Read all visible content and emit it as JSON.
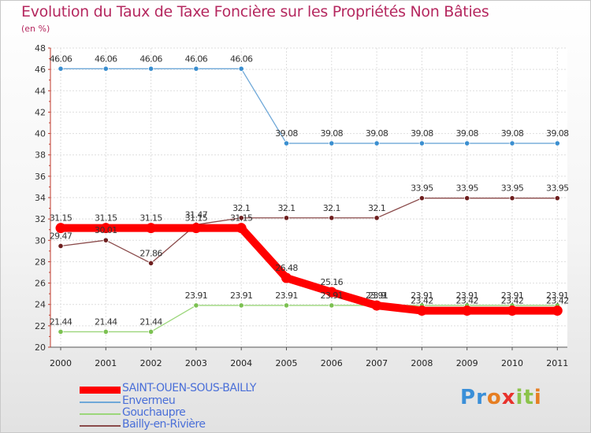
{
  "title": "Evolution du Taux de Taxe Foncière sur les Propriétés Non Bâties",
  "y_unit": "(en %)",
  "logo": {
    "text": "Proxiti",
    "letters": [
      "P",
      "r",
      "o",
      "x",
      "i",
      "t",
      "i"
    ],
    "colors": [
      "#3a8fd8",
      "#3a8fd8",
      "#e67e22",
      "#e8322c",
      "#8bc34a",
      "#8bc34a",
      "#e67e22"
    ]
  },
  "chart_data": {
    "type": "line",
    "title": "Evolution du Taux de Taxe Foncière sur les Propriétés Non Bâties",
    "xlabel": "",
    "ylabel": "(en %)",
    "ylim": [
      20,
      48
    ],
    "yticks": [
      20,
      22,
      24,
      26,
      28,
      30,
      32,
      34,
      36,
      38,
      40,
      42,
      44,
      46,
      48
    ],
    "x": [
      "2000",
      "2001",
      "2002",
      "2003",
      "2004",
      "2005",
      "2006",
      "2007",
      "2008",
      "2009",
      "2010",
      "2011"
    ],
    "grid": true,
    "legend_position": "bottom-left",
    "series": [
      {
        "name": "SAINT-OUEN-SOUS-BAILLY",
        "color": "#ff0000",
        "emphasis": true,
        "values": [
          31.15,
          31.15,
          31.15,
          31.15,
          31.15,
          26.48,
          25.16,
          23.9,
          23.42,
          23.42,
          23.42,
          23.42
        ],
        "labels": [
          "31.15",
          "31.15",
          "31.15",
          "31.15",
          "31.15",
          "26.48",
          "25.16",
          "23.9",
          "23.42",
          "23.42",
          "23.42",
          "23.42"
        ]
      },
      {
        "name": "Envermeu",
        "color": "#6fa8d8",
        "marker": "#3b8fd0",
        "values": [
          46.06,
          46.06,
          46.06,
          46.06,
          46.06,
          39.08,
          39.08,
          39.08,
          39.08,
          39.08,
          39.08,
          39.08
        ],
        "labels": [
          "46.06",
          "46.06",
          "46.06",
          "46.06",
          "46.06",
          "39.08",
          "39.08",
          "39.08",
          "39.08",
          "39.08",
          "39.08",
          "39.08"
        ]
      },
      {
        "name": "Gouchaupre",
        "color": "#9bd67a",
        "marker": "#7cc152",
        "values": [
          21.44,
          21.44,
          21.44,
          23.91,
          23.91,
          23.91,
          23.91,
          23.91,
          23.91,
          23.91,
          23.91,
          23.91
        ],
        "labels": [
          "21.44",
          "21.44",
          "21.44",
          "23.91",
          "23.91",
          "23.91",
          "23.91",
          "23.91",
          "23.91",
          "23.91",
          "23.91",
          "23.91"
        ]
      },
      {
        "name": "Bailly-en-Rivière",
        "color": "#8a4a4a",
        "marker": "#6e1f1f",
        "values": [
          29.47,
          30.01,
          27.86,
          31.47,
          32.1,
          32.1,
          32.1,
          32.1,
          33.95,
          33.95,
          33.95,
          33.95
        ],
        "labels": [
          "29.47",
          "30.01",
          "27.86",
          "31.47",
          "32.1",
          "32.1",
          "32.1",
          "32.1",
          "33.95",
          "33.95",
          "33.95",
          "33.95"
        ]
      }
    ]
  }
}
